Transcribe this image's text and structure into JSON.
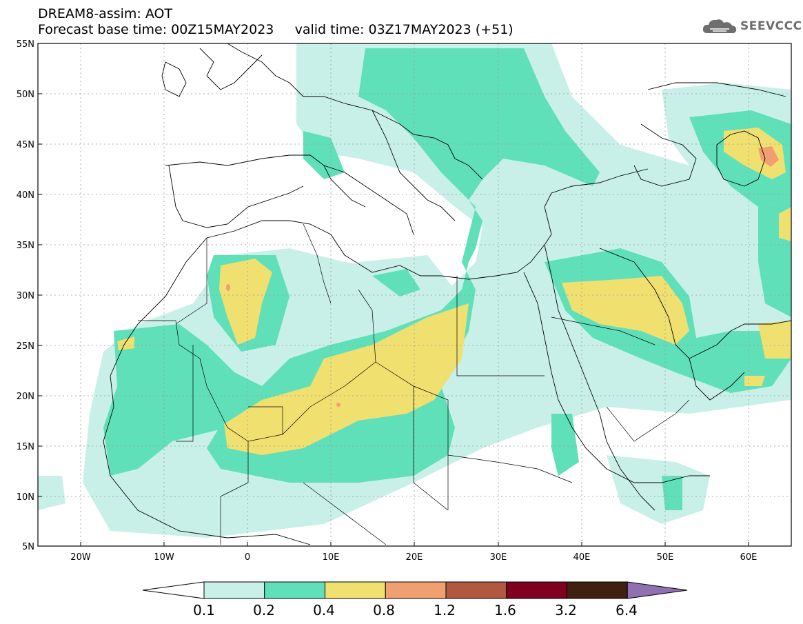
{
  "header": {
    "line1": "DREAM8-assim: AOT",
    "line2": "Forecast base time: 00Z15MAY2023     valid time: 03Z17MAY2023 (+51)"
  },
  "logo": {
    "icon": "cloud-icon",
    "text": "SEEVCCC"
  },
  "axes": {
    "lat_labels": [
      "55N",
      "50N",
      "45N",
      "40N",
      "35N",
      "30N",
      "25N",
      "20N",
      "15N",
      "10N",
      "5N"
    ],
    "lon_labels": [
      "20W",
      "10W",
      "0",
      "10E",
      "20E",
      "30E",
      "40E",
      "50E",
      "60E"
    ],
    "lon_range": [
      -25,
      65
    ],
    "lat_range": [
      5,
      55
    ]
  },
  "legend": {
    "levels": [
      "0.1",
      "0.2",
      "0.4",
      "0.8",
      "1.2",
      "1.6",
      "3.2",
      "6.4"
    ],
    "colors": [
      "#ffffff",
      "#c8f0e8",
      "#5fe0b8",
      "#f0e070",
      "#f0a070",
      "#b05840",
      "#800020",
      "#402010",
      "#9070b0"
    ]
  }
}
